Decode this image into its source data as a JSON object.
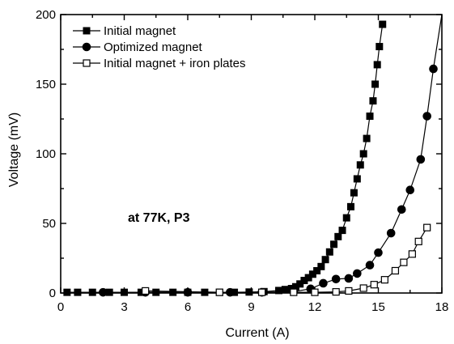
{
  "chart_data": {
    "type": "line",
    "xlabel": "Current (A)",
    "ylabel": "Voltage (mV)",
    "xlim": [
      0,
      18
    ],
    "ylim": [
      0,
      200
    ],
    "x_ticks": [
      0,
      3,
      6,
      9,
      12,
      15,
      18
    ],
    "y_ticks": [
      0,
      50,
      100,
      150,
      200
    ],
    "grid": false,
    "legend_position": "top-left",
    "annotation": "at 77K, P3",
    "series": [
      {
        "name": "Initial magnet",
        "marker": "filled-square",
        "color": "#000000",
        "points": [
          [
            0.3,
            0.5
          ],
          [
            0.8,
            0.5
          ],
          [
            1.5,
            0.5
          ],
          [
            2.3,
            0.5
          ],
          [
            3.0,
            0.5
          ],
          [
            3.8,
            0.5
          ],
          [
            4.5,
            0.5
          ],
          [
            5.3,
            0.5
          ],
          [
            6.0,
            0.5
          ],
          [
            6.8,
            0.5
          ],
          [
            7.5,
            0.5
          ],
          [
            8.2,
            0.5
          ],
          [
            8.9,
            0.7
          ],
          [
            9.6,
            1.0
          ],
          [
            10.3,
            1.8
          ],
          [
            10.6,
            2.5
          ],
          [
            10.9,
            3.2
          ],
          [
            11.1,
            4.5
          ],
          [
            11.3,
            6.5
          ],
          [
            11.5,
            9.0
          ],
          [
            11.7,
            11.0
          ],
          [
            11.9,
            13.5
          ],
          [
            12.1,
            16.0
          ],
          [
            12.3,
            19.0
          ],
          [
            12.5,
            24.0
          ],
          [
            12.7,
            29.5
          ],
          [
            12.9,
            35.0
          ],
          [
            13.1,
            40.5
          ],
          [
            13.3,
            45.0
          ],
          [
            13.5,
            54.0
          ],
          [
            13.7,
            62.0
          ],
          [
            13.85,
            72.0
          ],
          [
            14.0,
            82.0
          ],
          [
            14.15,
            92.0
          ],
          [
            14.3,
            100.0
          ],
          [
            14.45,
            111.0
          ],
          [
            14.6,
            127.0
          ],
          [
            14.75,
            138.0
          ],
          [
            14.85,
            150.0
          ],
          [
            14.95,
            164.0
          ],
          [
            15.05,
            177.0
          ],
          [
            15.2,
            193.0
          ]
        ]
      },
      {
        "name": "Optimized magnet",
        "marker": "filled-circle",
        "color": "#000000",
        "points": [
          [
            2.0,
            0.5
          ],
          [
            4.0,
            0.5
          ],
          [
            6.0,
            0.5
          ],
          [
            8.0,
            0.5
          ],
          [
            9.5,
            0.5
          ],
          [
            11.0,
            1.0
          ],
          [
            11.8,
            3.0
          ],
          [
            12.4,
            7.0
          ],
          [
            13.0,
            10.0
          ],
          [
            13.6,
            10.5
          ],
          [
            14.0,
            14.0
          ],
          [
            14.6,
            20.0
          ],
          [
            15.0,
            29.0
          ],
          [
            15.6,
            43.0
          ],
          [
            16.1,
            60.0
          ],
          [
            16.5,
            74.0
          ],
          [
            17.0,
            96.0
          ],
          [
            17.3,
            127.0
          ],
          [
            17.6,
            161.0
          ]
        ]
      },
      {
        "name": "Initial magnet + iron plates",
        "marker": "open-square",
        "color": "#000000",
        "points": [
          [
            4.0,
            1.5
          ],
          [
            7.5,
            0.5
          ],
          [
            9.5,
            0.5
          ],
          [
            11.0,
            0.5
          ],
          [
            12.0,
            0.5
          ],
          [
            13.0,
            0.8
          ],
          [
            13.6,
            1.5
          ],
          [
            14.3,
            3.5
          ],
          [
            14.8,
            6.0
          ],
          [
            15.3,
            9.5
          ],
          [
            15.8,
            16.0
          ],
          [
            16.2,
            22.0
          ],
          [
            16.6,
            28.0
          ],
          [
            16.9,
            37.0
          ],
          [
            17.3,
            47.0
          ]
        ]
      }
    ]
  }
}
